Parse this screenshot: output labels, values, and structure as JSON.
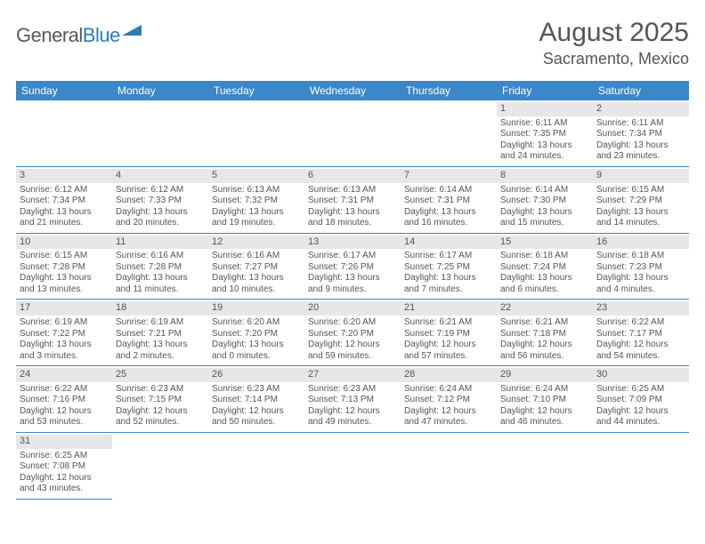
{
  "logo": {
    "text1": "General",
    "text2": "Blue"
  },
  "header": {
    "title": "August 2025",
    "location": "Sacramento, Mexico"
  },
  "colors": {
    "header_bg": "#3b87c8",
    "header_text": "#ffffff",
    "daynum_bg": "#e6e7e8",
    "text": "#555555",
    "rule": "#3b87c8"
  },
  "weekdays": [
    "Sunday",
    "Monday",
    "Tuesday",
    "Wednesday",
    "Thursday",
    "Friday",
    "Saturday"
  ],
  "weeks": [
    [
      null,
      null,
      null,
      null,
      null,
      {
        "n": "1",
        "sr": "Sunrise: 6:11 AM",
        "ss": "Sunset: 7:35 PM",
        "dl": "Daylight: 13 hours and 24 minutes."
      },
      {
        "n": "2",
        "sr": "Sunrise: 6:11 AM",
        "ss": "Sunset: 7:34 PM",
        "dl": "Daylight: 13 hours and 23 minutes."
      }
    ],
    [
      {
        "n": "3",
        "sr": "Sunrise: 6:12 AM",
        "ss": "Sunset: 7:34 PM",
        "dl": "Daylight: 13 hours and 21 minutes."
      },
      {
        "n": "4",
        "sr": "Sunrise: 6:12 AM",
        "ss": "Sunset: 7:33 PM",
        "dl": "Daylight: 13 hours and 20 minutes."
      },
      {
        "n": "5",
        "sr": "Sunrise: 6:13 AM",
        "ss": "Sunset: 7:32 PM",
        "dl": "Daylight: 13 hours and 19 minutes."
      },
      {
        "n": "6",
        "sr": "Sunrise: 6:13 AM",
        "ss": "Sunset: 7:31 PM",
        "dl": "Daylight: 13 hours and 18 minutes."
      },
      {
        "n": "7",
        "sr": "Sunrise: 6:14 AM",
        "ss": "Sunset: 7:31 PM",
        "dl": "Daylight: 13 hours and 16 minutes."
      },
      {
        "n": "8",
        "sr": "Sunrise: 6:14 AM",
        "ss": "Sunset: 7:30 PM",
        "dl": "Daylight: 13 hours and 15 minutes."
      },
      {
        "n": "9",
        "sr": "Sunrise: 6:15 AM",
        "ss": "Sunset: 7:29 PM",
        "dl": "Daylight: 13 hours and 14 minutes."
      }
    ],
    [
      {
        "n": "10",
        "sr": "Sunrise: 6:15 AM",
        "ss": "Sunset: 7:28 PM",
        "dl": "Daylight: 13 hours and 13 minutes."
      },
      {
        "n": "11",
        "sr": "Sunrise: 6:16 AM",
        "ss": "Sunset: 7:28 PM",
        "dl": "Daylight: 13 hours and 11 minutes."
      },
      {
        "n": "12",
        "sr": "Sunrise: 6:16 AM",
        "ss": "Sunset: 7:27 PM",
        "dl": "Daylight: 13 hours and 10 minutes."
      },
      {
        "n": "13",
        "sr": "Sunrise: 6:17 AM",
        "ss": "Sunset: 7:26 PM",
        "dl": "Daylight: 13 hours and 9 minutes."
      },
      {
        "n": "14",
        "sr": "Sunrise: 6:17 AM",
        "ss": "Sunset: 7:25 PM",
        "dl": "Daylight: 13 hours and 7 minutes."
      },
      {
        "n": "15",
        "sr": "Sunrise: 6:18 AM",
        "ss": "Sunset: 7:24 PM",
        "dl": "Daylight: 13 hours and 6 minutes."
      },
      {
        "n": "16",
        "sr": "Sunrise: 6:18 AM",
        "ss": "Sunset: 7:23 PM",
        "dl": "Daylight: 13 hours and 4 minutes."
      }
    ],
    [
      {
        "n": "17",
        "sr": "Sunrise: 6:19 AM",
        "ss": "Sunset: 7:22 PM",
        "dl": "Daylight: 13 hours and 3 minutes."
      },
      {
        "n": "18",
        "sr": "Sunrise: 6:19 AM",
        "ss": "Sunset: 7:21 PM",
        "dl": "Daylight: 13 hours and 2 minutes."
      },
      {
        "n": "19",
        "sr": "Sunrise: 6:20 AM",
        "ss": "Sunset: 7:20 PM",
        "dl": "Daylight: 13 hours and 0 minutes."
      },
      {
        "n": "20",
        "sr": "Sunrise: 6:20 AM",
        "ss": "Sunset: 7:20 PM",
        "dl": "Daylight: 12 hours and 59 minutes."
      },
      {
        "n": "21",
        "sr": "Sunrise: 6:21 AM",
        "ss": "Sunset: 7:19 PM",
        "dl": "Daylight: 12 hours and 57 minutes."
      },
      {
        "n": "22",
        "sr": "Sunrise: 6:21 AM",
        "ss": "Sunset: 7:18 PM",
        "dl": "Daylight: 12 hours and 56 minutes."
      },
      {
        "n": "23",
        "sr": "Sunrise: 6:22 AM",
        "ss": "Sunset: 7:17 PM",
        "dl": "Daylight: 12 hours and 54 minutes."
      }
    ],
    [
      {
        "n": "24",
        "sr": "Sunrise: 6:22 AM",
        "ss": "Sunset: 7:16 PM",
        "dl": "Daylight: 12 hours and 53 minutes."
      },
      {
        "n": "25",
        "sr": "Sunrise: 6:23 AM",
        "ss": "Sunset: 7:15 PM",
        "dl": "Daylight: 12 hours and 52 minutes."
      },
      {
        "n": "26",
        "sr": "Sunrise: 6:23 AM",
        "ss": "Sunset: 7:14 PM",
        "dl": "Daylight: 12 hours and 50 minutes."
      },
      {
        "n": "27",
        "sr": "Sunrise: 6:23 AM",
        "ss": "Sunset: 7:13 PM",
        "dl": "Daylight: 12 hours and 49 minutes."
      },
      {
        "n": "28",
        "sr": "Sunrise: 6:24 AM",
        "ss": "Sunset: 7:12 PM",
        "dl": "Daylight: 12 hours and 47 minutes."
      },
      {
        "n": "29",
        "sr": "Sunrise: 6:24 AM",
        "ss": "Sunset: 7:10 PM",
        "dl": "Daylight: 12 hours and 46 minutes."
      },
      {
        "n": "30",
        "sr": "Sunrise: 6:25 AM",
        "ss": "Sunset: 7:09 PM",
        "dl": "Daylight: 12 hours and 44 minutes."
      }
    ],
    [
      {
        "n": "31",
        "sr": "Sunrise: 6:25 AM",
        "ss": "Sunset: 7:08 PM",
        "dl": "Daylight: 12 hours and 43 minutes."
      },
      null,
      null,
      null,
      null,
      null,
      null
    ]
  ]
}
